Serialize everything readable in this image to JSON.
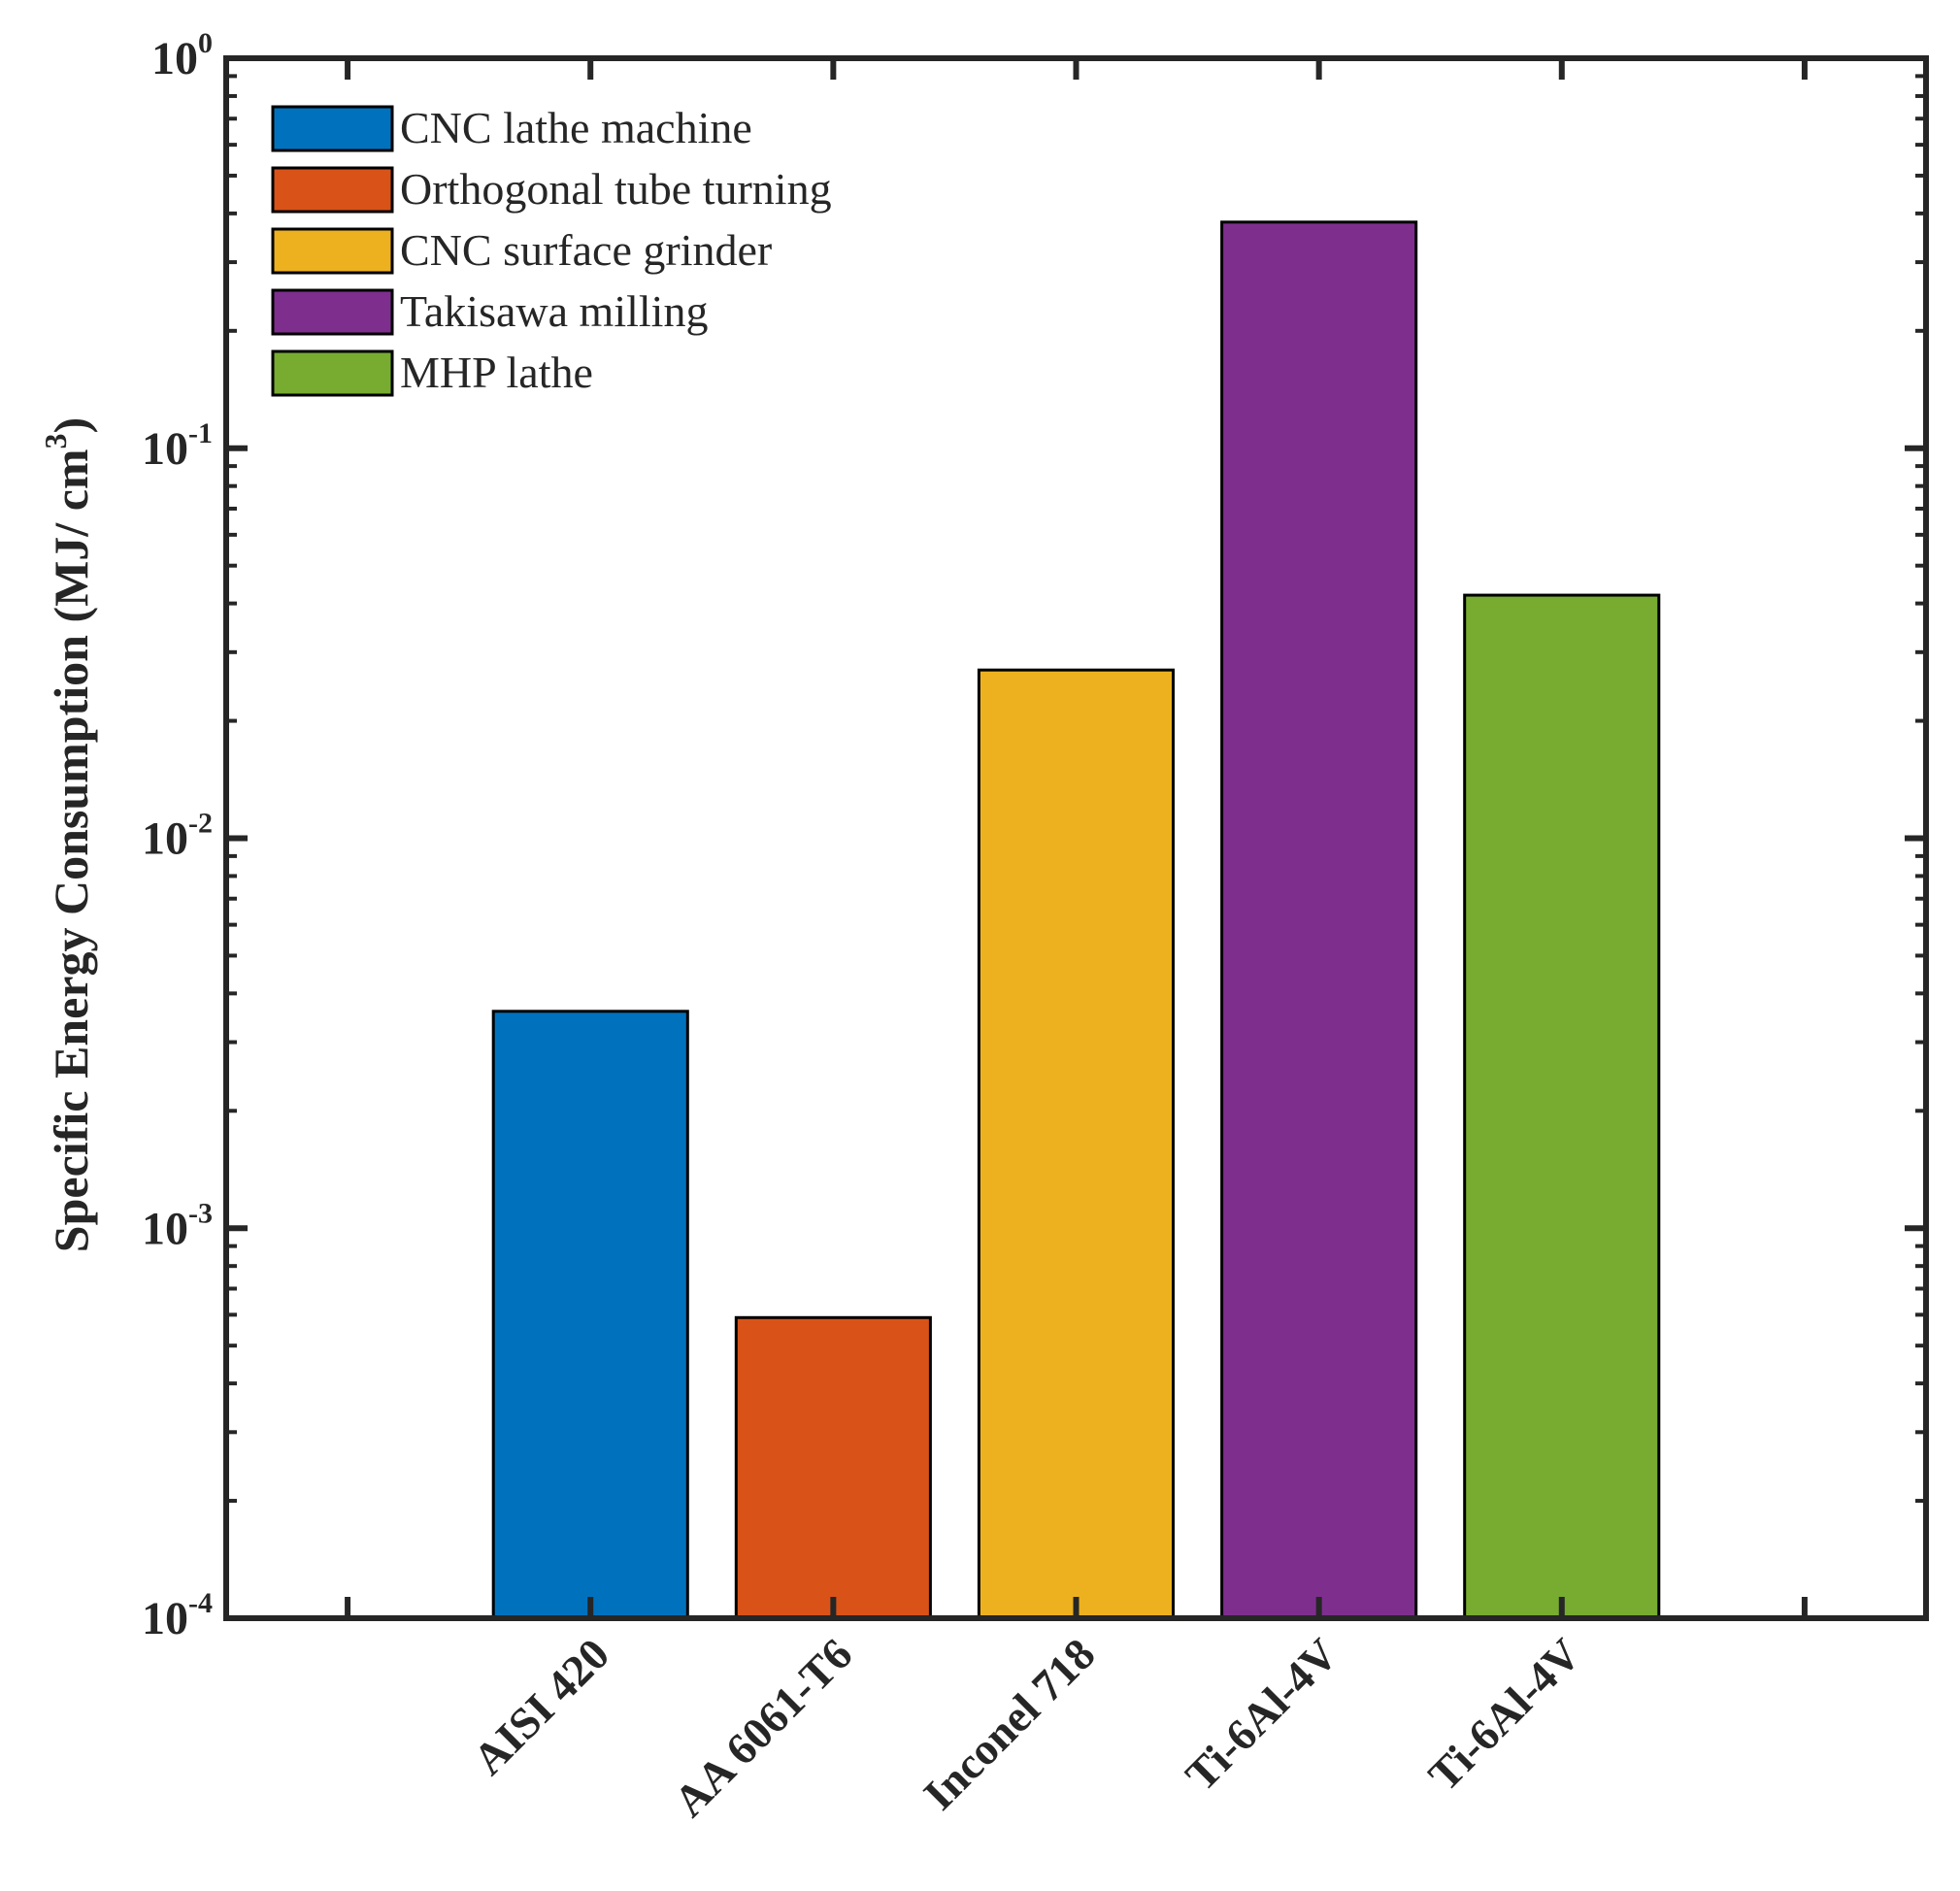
{
  "chart_data": {
    "type": "bar",
    "scale_y": "log",
    "ylabel": "Specific Energy Consumption (MJ/ cm",
    "ylabel_superscript": "3",
    "ylabel_close": ")",
    "ylim": [
      0.0001,
      1
    ],
    "y_ticks": [
      {
        "base": "10",
        "exp": "-4",
        "value": 0.0001
      },
      {
        "base": "10",
        "exp": "-3",
        "value": 0.001
      },
      {
        "base": "10",
        "exp": "-2",
        "value": 0.01
      },
      {
        "base": "10",
        "exp": "-1",
        "value": 0.1
      },
      {
        "base": "10",
        "exp": "0",
        "value": 1
      }
    ],
    "categories": [
      "AISI 420",
      "AA 6061-T6",
      "Inconel 718",
      "Ti-6Al-4V",
      "Ti-6Al-4V"
    ],
    "series": [
      {
        "name": "CNC lathe machine",
        "value": 0.0036,
        "color": "#0072BD"
      },
      {
        "name": "Orthogonal tube turning",
        "value": 0.00059,
        "color": "#D95319"
      },
      {
        "name": "CNC surface grinder",
        "value": 0.027,
        "color": "#EDB120"
      },
      {
        "name": "Takisawa milling",
        "value": 0.38,
        "color": "#7E2F8E"
      },
      {
        "name": "MHP lathe",
        "value": 0.042,
        "color": "#77AC30"
      }
    ],
    "x_slots": 7,
    "legend_position": "top-left"
  }
}
